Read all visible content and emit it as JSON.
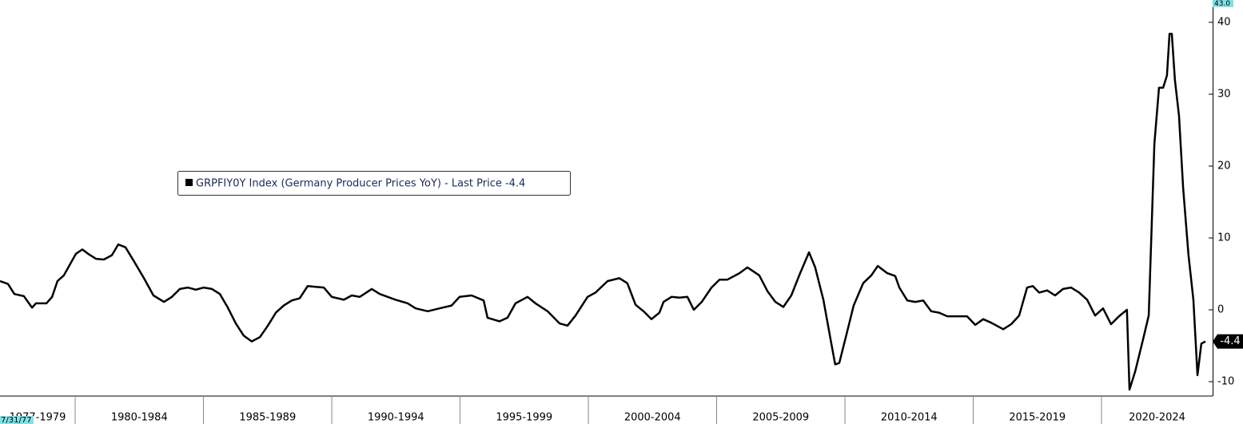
{
  "chart_data": {
    "type": "line",
    "series": [
      {
        "name": "GRPFIY0Y Index (Germany Producer Prices YoY) - Last Price -4.4",
        "color": "#000000",
        "values": [
          4.0,
          3.6,
          2.2,
          1.9,
          0.3,
          0.9,
          0.9,
          1.8,
          4.0,
          4.8,
          6.4,
          7.8,
          8.4,
          7.8,
          7.1,
          7.0,
          7.6,
          9.1,
          8.7,
          6.7,
          4.4,
          2.0,
          1.1,
          1.8,
          2.9,
          3.1,
          2.8,
          3.1,
          2.9,
          2.2,
          0.3,
          -1.9,
          -3.6,
          -4.4,
          -3.8,
          -2.2,
          -0.4,
          0.6,
          1.3,
          1.6,
          3.3,
          3.2,
          3.1,
          1.8,
          1.4,
          2.0,
          1.8,
          2.9,
          2.2,
          1.8,
          1.4,
          0.9,
          0.2,
          -0.2,
          0.2,
          0.6,
          1.8,
          2.0,
          1.3,
          -1.1,
          -1.6,
          -1.1,
          0.9,
          1.8,
          0.9,
          -0.2,
          -1.9,
          -2.2,
          -0.8,
          1.8,
          2.4,
          4.0,
          4.4,
          3.7,
          0.7,
          -0.2,
          -1.3,
          -0.4,
          1.1,
          1.8,
          1.7,
          1.8,
          0.0,
          1.1,
          3.1,
          4.2,
          4.2,
          5.1,
          5.9,
          4.8,
          2.6,
          1.1,
          0.4,
          2.0,
          4.8,
          8.0,
          5.9,
          1.4,
          -4.7,
          -7.6,
          -7.4,
          -3.0,
          0.6,
          3.7,
          4.8,
          6.1,
          5.1,
          4.7,
          3.1,
          1.3,
          1.1,
          1.3,
          -0.2,
          -0.4,
          -0.9,
          -0.9,
          -0.9,
          -2.1,
          -1.3,
          -1.8,
          -2.7,
          -2.0,
          -0.8,
          3.1,
          3.3,
          2.4,
          2.7,
          2.0,
          2.9,
          3.1,
          2.4,
          1.4,
          -0.8,
          0.2,
          -2.0,
          -0.9,
          0.0,
          -11.1,
          -8.6,
          -4.1,
          -0.8,
          23.1,
          30.9,
          30.9,
          32.6,
          38.4,
          38.4,
          32.0,
          27.0,
          17.0,
          7.6,
          1.4,
          -9.1,
          -4.7,
          -4.4
        ]
      }
    ],
    "x": [
      1977.07,
      1977.38,
      1977.63,
      1978.0,
      1978.32,
      1978.47,
      1978.88,
      1979.1,
      1979.31,
      1979.56,
      1979.81,
      1980.03,
      1980.28,
      1980.5,
      1980.81,
      1981.12,
      1981.43,
      1981.68,
      1981.96,
      1982.3,
      1982.68,
      1983.05,
      1983.46,
      1983.77,
      1984.08,
      1984.39,
      1984.7,
      1985.01,
      1985.33,
      1985.64,
      1985.95,
      1986.26,
      1986.57,
      1986.88,
      1987.2,
      1987.51,
      1987.82,
      1988.13,
      1988.44,
      1988.75,
      1989.06,
      1989.38,
      1989.69,
      1990.0,
      1990.47,
      1990.78,
      1991.09,
      1991.56,
      1991.87,
      1992.18,
      1992.49,
      1992.96,
      1993.27,
      1993.74,
      1994.2,
      1994.67,
      1994.98,
      1995.45,
      1995.92,
      1996.07,
      1996.54,
      1996.85,
      1997.16,
      1997.63,
      1997.94,
      1998.41,
      1998.88,
      1999.19,
      1999.5,
      1999.97,
      2000.28,
      2000.75,
      2001.21,
      2001.52,
      2001.84,
      2002.15,
      2002.46,
      2002.77,
      2002.93,
      2003.24,
      2003.55,
      2003.86,
      2004.11,
      2004.42,
      2004.8,
      2005.11,
      2005.42,
      2005.89,
      2006.2,
      2006.66,
      2006.98,
      2007.29,
      2007.6,
      2007.91,
      2008.22,
      2008.6,
      2008.84,
      2009.16,
      2009.47,
      2009.62,
      2009.78,
      2010.09,
      2010.34,
      2010.71,
      2011.03,
      2011.28,
      2011.65,
      2011.96,
      2012.12,
      2012.43,
      2012.74,
      2013.05,
      2013.36,
      2013.67,
      2013.99,
      2014.3,
      2014.76,
      2015.08,
      2015.39,
      2015.7,
      2016.17,
      2016.48,
      2016.79,
      2017.1,
      2017.32,
      2017.57,
      2017.88,
      2018.19,
      2018.5,
      2018.81,
      2019.13,
      2019.44,
      2019.75,
      2020.06,
      2020.37,
      2020.68,
      2020.99,
      2021.09,
      2021.31,
      2021.62,
      2021.84,
      2022.06,
      2022.24,
      2022.4,
      2022.55,
      2022.65,
      2022.74,
      2022.86,
      2023.02,
      2023.18,
      2023.39,
      2023.58,
      2023.74,
      2023.89,
      2024.05
    ],
    "xlim": [
      1977.07,
      2024.33
    ],
    "xticks": [
      1980,
      1985,
      1990,
      1995,
      2000,
      2005,
      2010,
      2015,
      2020
    ],
    "period_labels": [
      "1977-1979",
      "1980-1984",
      "1985-1989",
      "1990-1994",
      "1995-1999",
      "2000-2004",
      "2005-2009",
      "2010-2014",
      "2015-2019",
      "2020-2024"
    ],
    "ylim": [
      -12,
      43
    ],
    "yticks": [
      -10,
      0,
      10,
      20,
      30,
      40
    ],
    "axis_max_label": {
      "value": 43,
      "label": "43.0"
    },
    "start_label": "7/31/77",
    "last_price": -4.4
  }
}
